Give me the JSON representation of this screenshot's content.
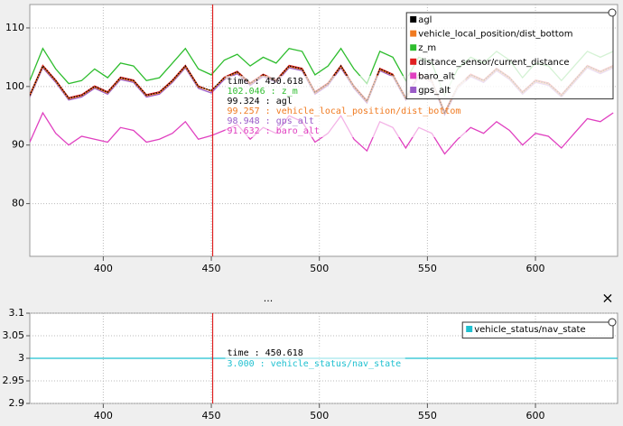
{
  "chart_data": [
    {
      "type": "line",
      "title": null,
      "x": [
        366,
        372,
        378,
        384,
        390,
        396,
        402,
        408,
        414,
        420,
        426,
        432,
        438,
        444,
        450,
        456,
        462,
        468,
        474,
        480,
        486,
        492,
        498,
        504,
        510,
        516,
        522,
        528,
        534,
        540,
        546,
        552,
        558,
        564,
        570,
        576,
        582,
        588,
        594,
        600,
        606,
        612,
        618,
        624,
        630,
        636
      ],
      "series": [
        {
          "name": "agl",
          "color": "#000000",
          "values": [
            98.5,
            103.5,
            101,
            98,
            98.5,
            100,
            99,
            101.5,
            101,
            98.5,
            99,
            101,
            103.5,
            100,
            99.3,
            101.5,
            102.5,
            100.5,
            102,
            101,
            103.5,
            103,
            99,
            100.5,
            103.5,
            100,
            97.5,
            103,
            102,
            98,
            102,
            101,
            95.5,
            100,
            102,
            101,
            103,
            101.5,
            99,
            101,
            100.5,
            98.5,
            101,
            103.5,
            102.5,
            103.5
          ]
        },
        {
          "name": "vehicle_local_position/dist_bottom",
          "color": "#f07a20",
          "values": [
            98.4,
            103.4,
            100.9,
            97.9,
            98.4,
            99.9,
            98.9,
            101.4,
            100.9,
            98.4,
            98.9,
            100.9,
            103.4,
            99.9,
            99.3,
            101.4,
            102.4,
            100.4,
            101.9,
            100.9,
            103.4,
            102.9,
            98.9,
            100.4,
            103.4,
            99.9,
            97.4,
            102.9,
            101.9,
            97.9,
            101.9,
            100.9,
            95.4,
            99.9,
            101.9,
            100.9,
            102.9,
            101.4,
            98.9,
            100.9,
            100.4,
            98.4,
            100.9,
            103.4,
            102.4,
            103.4
          ]
        },
        {
          "name": "z_m",
          "color": "#2ebd2e",
          "values": [
            101,
            106.5,
            103,
            100.5,
            101,
            103,
            101.5,
            104,
            103.5,
            101,
            101.5,
            104,
            106.5,
            103,
            102,
            104.5,
            105.5,
            103.5,
            105,
            104,
            106.5,
            106,
            102,
            103.5,
            106.5,
            103,
            100.5,
            106,
            105,
            101,
            105,
            104,
            98.5,
            103,
            105,
            104,
            106,
            104.5,
            101.5,
            104,
            103.5,
            101,
            103.5,
            106,
            105,
            106
          ]
        },
        {
          "name": "distance_sensor/current_distance",
          "color": "#e02020",
          "values": [
            98.6,
            103.6,
            101.1,
            98.1,
            98.6,
            100.1,
            99.1,
            101.6,
            101.1,
            98.6,
            99.1,
            101.1,
            103.6,
            100.1,
            99.2,
            101.6,
            102.6,
            100.6,
            102.1,
            101.1,
            103.6,
            103.1,
            99.1,
            100.6,
            103.6,
            100.1,
            97.6,
            103.1,
            102.1,
            98.1,
            102.1,
            101.1,
            95.6,
            100.1,
            102.1,
            101.1,
            103.1,
            101.6,
            99.1,
            101.1,
            100.6,
            98.6,
            101.1,
            103.6,
            102.6,
            103.6
          ]
        },
        {
          "name": "baro_alt",
          "color": "#e040c0",
          "values": [
            90.5,
            95.5,
            92,
            90,
            91.5,
            91,
            90.5,
            93,
            92.5,
            90.5,
            91,
            92,
            94,
            91,
            91.6,
            92.5,
            93.5,
            91,
            93,
            92,
            95,
            94,
            90.5,
            92,
            95,
            91,
            89,
            94,
            93,
            89.5,
            93,
            92,
            88.5,
            91,
            93,
            92,
            94,
            92.5,
            90,
            92,
            91.5,
            89.5,
            92,
            94.5,
            94,
            95.5
          ]
        },
        {
          "name": "gps_alt",
          "color": "#9a5cc8",
          "values": [
            98.2,
            103.2,
            100.7,
            97.7,
            98.2,
            99.7,
            98.7,
            101.2,
            100.7,
            98.2,
            98.7,
            100.7,
            103.2,
            99.7,
            98.9,
            101.2,
            102.2,
            100.2,
            101.7,
            100.7,
            103.2,
            102.7,
            98.7,
            100.2,
            103.2,
            99.7,
            97.2,
            102.7,
            101.7,
            97.7,
            101.7,
            100.7,
            95.2,
            99.7,
            101.7,
            100.7,
            102.7,
            101.2,
            98.7,
            100.7,
            100.2,
            98.2,
            100.7,
            103.2,
            102.2,
            103.2
          ]
        }
      ],
      "xlim": [
        366,
        638
      ],
      "xticks": [
        400,
        450,
        500,
        550,
        600
      ],
      "ylim": [
        71,
        114
      ],
      "yticks": [
        80,
        90,
        100,
        110
      ],
      "grid": true,
      "legend": "top-right",
      "cursor_x": 450.618,
      "tooltip": [
        {
          "text": "time : 450.618",
          "color": "#000000"
        },
        {
          "text": "102.046 : z_m",
          "color": "#2ebd2e"
        },
        {
          "text": "99.324 : agl",
          "color": "#000000"
        },
        {
          "text": "99.257 : vehicle_local_position/dist_bottom",
          "color": "#f07a20"
        },
        {
          "text": "98.948 : gps_alt",
          "color": "#9a5cc8"
        },
        {
          "text": "91.632 : baro_alt",
          "color": "#e040c0"
        }
      ]
    },
    {
      "type": "line",
      "title": "...",
      "x": [
        366,
        638
      ],
      "series": [
        {
          "name": "vehicle_status/nav_state",
          "color": "#1fc0d0",
          "values": [
            3,
            3
          ]
        }
      ],
      "xlim": [
        366,
        638
      ],
      "xticks": [
        400,
        450,
        500,
        550,
        600
      ],
      "ylim": [
        2.9,
        3.1
      ],
      "yticks": [
        2.9,
        2.95,
        3,
        3.05,
        3.1
      ],
      "grid": true,
      "legend": "top-right",
      "cursor_x": 450.618,
      "tooltip": [
        {
          "text": "time : 450.618",
          "color": "#000000"
        },
        {
          "text": "3.000 : vehicle_status/nav_state",
          "color": "#1fc0d0"
        }
      ]
    }
  ]
}
